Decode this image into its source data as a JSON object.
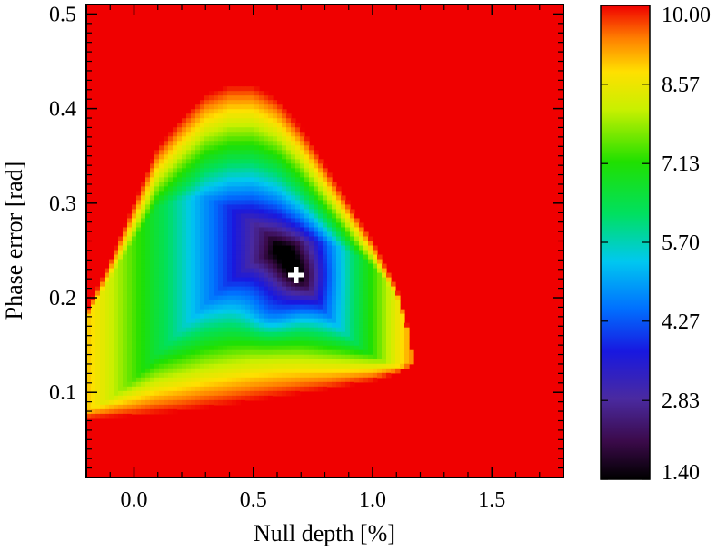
{
  "chart_data": {
    "type": "heatmap",
    "xlabel": "Null depth [%]",
    "ylabel": "Phase error [rad]",
    "xlim": [
      -0.2,
      1.8
    ],
    "ylim": [
      0.01,
      0.51
    ],
    "x_ticks": [
      {
        "value": 0.0,
        "label": "0.0"
      },
      {
        "value": 0.5,
        "label": "0.5"
      },
      {
        "value": 1.0,
        "label": "1.0"
      },
      {
        "value": 1.5,
        "label": "1.5"
      }
    ],
    "y_ticks": [
      {
        "value": 0.1,
        "label": "0.1"
      },
      {
        "value": 0.2,
        "label": "0.2"
      },
      {
        "value": 0.3,
        "label": "0.3"
      },
      {
        "value": 0.4,
        "label": "0.4"
      },
      {
        "value": 0.5,
        "label": "0.5"
      }
    ],
    "colorbar": {
      "min": 1.4,
      "max": 10.0,
      "colormap": "rainbow",
      "ticks": [
        {
          "value": 10.0,
          "label": "10.00"
        },
        {
          "value": 8.57,
          "label": "8.57"
        },
        {
          "value": 7.13,
          "label": "7.13"
        },
        {
          "value": 5.7,
          "label": "5.70"
        },
        {
          "value": 4.27,
          "label": "4.27"
        },
        {
          "value": 2.83,
          "label": "2.83"
        },
        {
          "value": 1.4,
          "label": "1.40"
        }
      ]
    },
    "minimum_marker": {
      "x": 0.68,
      "y": 0.224,
      "symbol": "plus",
      "color": "#ffffff"
    },
    "background_value": 10.0,
    "grid": false,
    "legend": false
  }
}
